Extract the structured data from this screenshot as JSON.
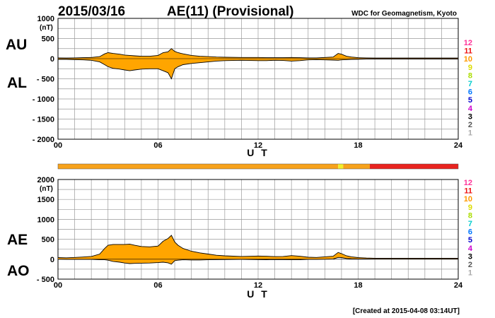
{
  "header": {
    "date": "2015/03/16",
    "title": "AE(11) (Provisional)",
    "source": "WDC for Geomagnetism, Kyoto"
  },
  "footer": {
    "created": "[Created at 2015-04-08 03:14UT]"
  },
  "colors": {
    "fill": "#ffa500",
    "outline": "#000000",
    "grid": "#9a9a9a",
    "bar_orange": "#f7a21b",
    "bar_yellow": "#f2ee2a",
    "bar_red": "#e8231f"
  },
  "scale_legend": [
    {
      "label": "12",
      "color": "#ff3399"
    },
    {
      "label": "11",
      "color": "#ee1111"
    },
    {
      "label": "10",
      "color": "#ff9900"
    },
    {
      "label": "9",
      "color": "#dddd00"
    },
    {
      "label": "8",
      "color": "#aadd00"
    },
    {
      "label": "7",
      "color": "#00cccc"
    },
    {
      "label": "6",
      "color": "#0077ff"
    },
    {
      "label": "5",
      "color": "#0000cc"
    },
    {
      "label": "4",
      "color": "#cc00cc"
    },
    {
      "label": "3",
      "color": "#000000"
    },
    {
      "label": "2",
      "color": "#555555"
    },
    {
      "label": "1",
      "color": "#aaaaaa"
    }
  ],
  "activity_bar": {
    "segments": [
      {
        "start": 0,
        "end": 16.8,
        "level": "10",
        "color": "#f7a21b"
      },
      {
        "start": 16.8,
        "end": 17.1,
        "level": "9",
        "color": "#f2ee2a"
      },
      {
        "start": 17.1,
        "end": 18.7,
        "level": "10",
        "color": "#f7a21b"
      },
      {
        "start": 18.7,
        "end": 24,
        "level": "11",
        "color": "#e8231f"
      }
    ]
  },
  "chart_data": [
    {
      "type": "area",
      "id": "au_al",
      "upper_label": "AU",
      "lower_label": "AL",
      "yunit": "(nT)",
      "xlabel": "U T",
      "xlim": [
        0,
        24
      ],
      "ylim": [
        -2000,
        1000
      ],
      "xticks": [
        "00",
        "06",
        "12",
        "18",
        "24"
      ],
      "yticks": [
        {
          "value": 1000,
          "label": "1000"
        },
        {
          "value": 500,
          "label": "500"
        },
        {
          "value": 0,
          "label": "0"
        },
        {
          "value": -500,
          "label": "- 500"
        },
        {
          "value": -1000,
          "label": "- 1000"
        },
        {
          "value": -1500,
          "label": "- 1500"
        },
        {
          "value": -2000,
          "label": "- 2000"
        }
      ],
      "x": [
        0,
        0.5,
        1,
        1.5,
        2,
        2.5,
        2.8,
        3,
        3.3,
        3.7,
        4,
        4.3,
        4.6,
        5,
        5.5,
        6,
        6.3,
        6.6,
        6.8,
        7,
        7.2,
        7.5,
        8,
        8.5,
        9,
        9.5,
        10,
        11,
        12,
        12.5,
        13,
        13.5,
        14,
        14.5,
        15,
        15.5,
        16,
        16.5,
        16.8,
        17,
        17.3,
        17.6,
        18,
        18.5,
        19,
        20,
        21,
        22,
        23,
        24
      ],
      "series": [
        {
          "name": "AU",
          "values": [
            20,
            15,
            20,
            25,
            30,
            50,
            120,
            150,
            130,
            110,
            90,
            80,
            70,
            60,
            60,
            80,
            150,
            170,
            250,
            180,
            150,
            120,
            80,
            60,
            50,
            40,
            35,
            30,
            30,
            25,
            25,
            25,
            30,
            25,
            20,
            20,
            30,
            40,
            130,
            110,
            60,
            40,
            25,
            20,
            15,
            15,
            15,
            15,
            15,
            15
          ]
        },
        {
          "name": "AL",
          "values": [
            -20,
            -20,
            -25,
            -30,
            -40,
            -80,
            -150,
            -200,
            -240,
            -260,
            -280,
            -300,
            -280,
            -260,
            -250,
            -250,
            -300,
            -350,
            -500,
            -250,
            -200,
            -150,
            -120,
            -100,
            -80,
            -60,
            -50,
            -40,
            -50,
            -50,
            -40,
            -45,
            -60,
            -50,
            -30,
            -25,
            -30,
            -35,
            -40,
            -30,
            -25,
            -20,
            -15,
            -10,
            -10,
            -10,
            -10,
            -10,
            -10,
            -10
          ]
        }
      ]
    },
    {
      "type": "area",
      "id": "ae_ao",
      "upper_label": "AE",
      "lower_label": "AO",
      "yunit": "(nT)",
      "xlabel": "U T",
      "xlim": [
        0,
        24
      ],
      "ylim": [
        -500,
        2000
      ],
      "xticks": [
        "00",
        "06",
        "12",
        "18",
        "24"
      ],
      "yticks": [
        {
          "value": 2000,
          "label": "2000"
        },
        {
          "value": 1500,
          "label": "1500"
        },
        {
          "value": 1000,
          "label": "1000"
        },
        {
          "value": 500,
          "label": "500"
        },
        {
          "value": 0,
          "label": "0"
        },
        {
          "value": -500,
          "label": "- 500"
        }
      ],
      "x": [
        0,
        0.5,
        1,
        1.5,
        2,
        2.5,
        2.8,
        3,
        3.3,
        3.7,
        4,
        4.3,
        4.6,
        5,
        5.5,
        6,
        6.3,
        6.6,
        6.8,
        7,
        7.2,
        7.5,
        8,
        8.5,
        9,
        9.5,
        10,
        11,
        12,
        12.5,
        13,
        13.5,
        14,
        14.5,
        15,
        15.5,
        16,
        16.5,
        16.8,
        17,
        17.3,
        17.6,
        18,
        18.5,
        19,
        20,
        21,
        22,
        23,
        24
      ],
      "series": [
        {
          "name": "AE",
          "values": [
            40,
            35,
            45,
            55,
            70,
            130,
            270,
            350,
            370,
            370,
            370,
            380,
            350,
            320,
            310,
            330,
            450,
            520,
            600,
            430,
            350,
            270,
            200,
            160,
            130,
            100,
            85,
            70,
            80,
            75,
            65,
            70,
            90,
            75,
            50,
            45,
            60,
            75,
            170,
            140,
            85,
            60,
            40,
            30,
            25,
            25,
            25,
            25,
            25,
            25
          ]
        },
        {
          "name": "AO",
          "values": [
            0,
            -3,
            -3,
            -3,
            -5,
            -15,
            -15,
            -25,
            -55,
            -75,
            -95,
            -110,
            -105,
            -100,
            -95,
            -85,
            -75,
            -90,
            -125,
            -35,
            -25,
            -15,
            -20,
            -20,
            -15,
            -10,
            -8,
            -5,
            -10,
            -13,
            -8,
            -10,
            -15,
            -13,
            -5,
            -3,
            0,
            3,
            45,
            40,
            18,
            10,
            5,
            5,
            3,
            3,
            3,
            3,
            3,
            3
          ]
        }
      ]
    }
  ]
}
